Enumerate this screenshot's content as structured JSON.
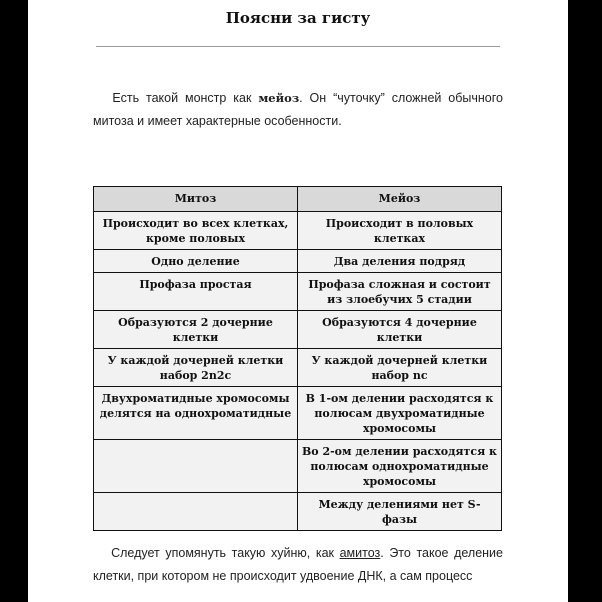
{
  "title": "Поясни за гисту",
  "intro": {
    "before": "Есть такой монстр как ",
    "bold": "мейоз",
    "after": ". Он “чуточку” сложней обычного митоза и имеет характерные особенности."
  },
  "table": {
    "headers": [
      "Митоз",
      "Мейоз"
    ],
    "rows": [
      [
        "Происходит во всех клетках, кроме половых",
        "Происходит в половых клетках"
      ],
      [
        "Одно деление",
        "Два деления подряд"
      ],
      [
        "Профаза простая",
        "Профаза сложная и состоит из злоебучих 5 стадии"
      ],
      [
        "Образуются 2 дочерние клетки",
        "Образуются 4 дочерние клетки"
      ],
      [
        "У каждой дочерней клетки набор 2n2c",
        "У каждой дочерней клетки набор nc"
      ],
      [
        "Двухроматидные хромосомы делятся на однохроматидные",
        "В 1-ом делении расходятся к полюсам двухроматидные хромосомы"
      ],
      [
        "",
        "Во 2-ом делении расходятся к полюсам однохроматидные хромосомы"
      ],
      [
        "",
        "Между делениями нет S-фазы"
      ]
    ]
  },
  "outro": {
    "before": "Следует упомянуть такую хуйню, как ",
    "underlined": "амитоз",
    "after": ". Это такое деление клетки, при котором не происходит удвоение ДНК, а сам процесс"
  }
}
